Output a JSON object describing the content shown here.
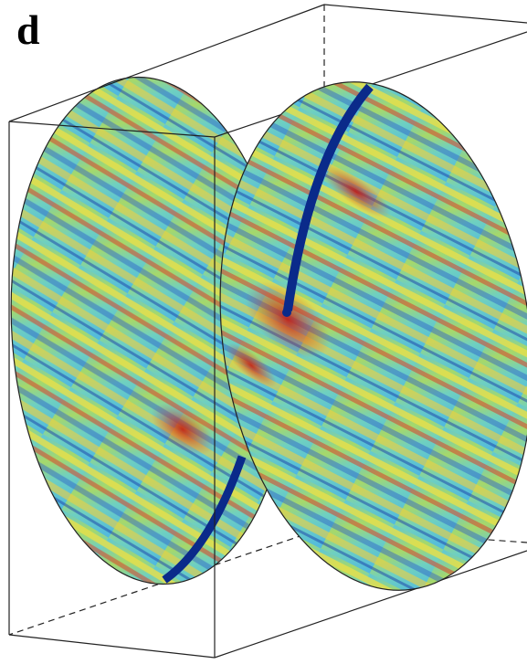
{
  "panel": {
    "label": "d"
  }
}
